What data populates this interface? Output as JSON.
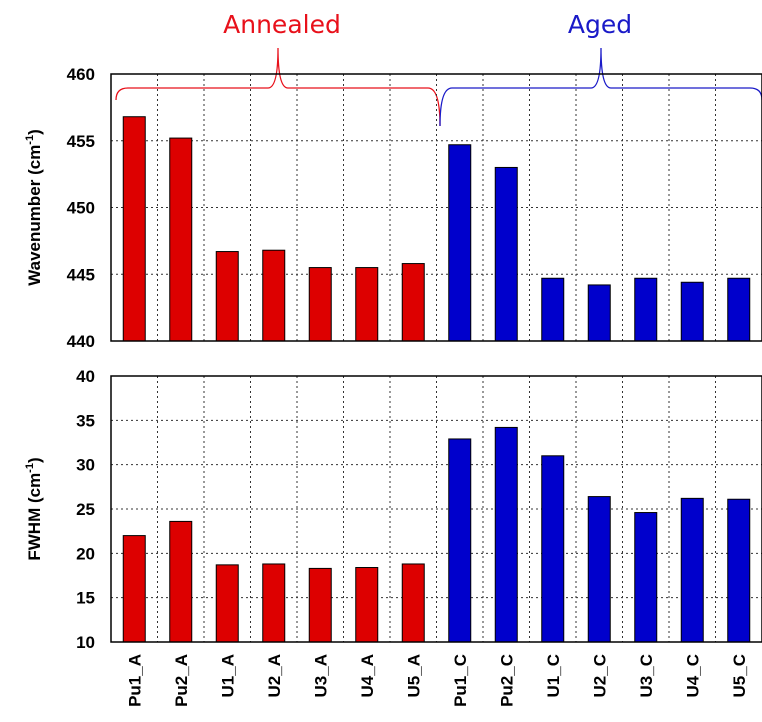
{
  "chart_data": [
    {
      "type": "bar",
      "panel": "top",
      "ylabel": "Wavenumber (cm-1)",
      "ylabel_base": "Wavenumber (cm",
      "ylabel_sup": "-1",
      "ylabel_end": ")",
      "ylim": [
        440,
        460
      ],
      "yticks": [
        440,
        445,
        450,
        455,
        460
      ],
      "grid": true,
      "categories": [
        "Pu1_A",
        "Pu2_A",
        "U1_A",
        "U2_A",
        "U3_A",
        "U4_A",
        "U5_A",
        "Pu1_C",
        "Pu2_C",
        "U1_C",
        "U2_C",
        "U3_C",
        "U4_C",
        "U5_C"
      ],
      "values": [
        456.8,
        455.2,
        446.7,
        446.8,
        445.5,
        445.5,
        445.8,
        454.7,
        453.0,
        444.7,
        444.2,
        444.7,
        444.4,
        444.7
      ]
    },
    {
      "type": "bar",
      "panel": "bottom",
      "ylabel": "FWHM (cm-1)",
      "ylabel_base": "FWHM (cm",
      "ylabel_sup": "-1",
      "ylabel_end": ")",
      "ylim": [
        10,
        40
      ],
      "yticks": [
        10,
        15,
        20,
        25,
        30,
        35,
        40
      ],
      "grid": true,
      "categories": [
        "Pu1_A",
        "Pu2_A",
        "U1_A",
        "U2_A",
        "U3_A",
        "U4_A",
        "U5_A",
        "Pu1_C",
        "Pu2_C",
        "U1_C",
        "U2_C",
        "U3_C",
        "U4_C",
        "U5_C"
      ],
      "values": [
        22.0,
        23.6,
        18.7,
        18.8,
        18.3,
        18.4,
        18.8,
        32.9,
        34.2,
        31.0,
        26.4,
        24.6,
        26.2,
        26.1
      ]
    }
  ],
  "groups": [
    {
      "label": "Annealed",
      "color": "#e8101a",
      "categories": [
        "Pu1_A",
        "Pu2_A",
        "U1_A",
        "U2_A",
        "U3_A",
        "U4_A",
        "U5_A"
      ]
    },
    {
      "label": "Aged",
      "color": "#1a1ac8",
      "categories": [
        "Pu1_C",
        "Pu2_C",
        "U1_C",
        "U2_C",
        "U3_C",
        "U4_C",
        "U5_C"
      ]
    }
  ],
  "colors": {
    "annealed_fill": "#dd0000",
    "aged_fill": "#0000cc"
  }
}
